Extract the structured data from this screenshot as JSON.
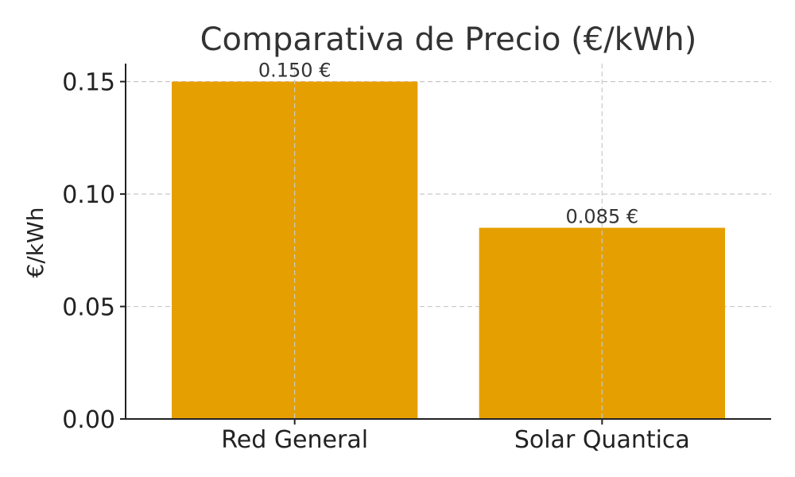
{
  "chart_data": {
    "type": "bar",
    "title": "Comparativa de Precio (€/kWh)",
    "xlabel": "",
    "ylabel": "€/kWh",
    "categories": [
      "Red General",
      "Solar Quantica"
    ],
    "values": [
      0.15,
      0.085
    ],
    "data_labels": [
      "0.150 €",
      "0.085 €"
    ],
    "ylim": [
      0,
      0.158
    ],
    "yticks": [
      0.0,
      0.05,
      0.1,
      0.15
    ],
    "ytick_labels": [
      "0.00",
      "0.05",
      "0.10",
      "0.15"
    ],
    "grid": true,
    "bar_color": "#E69F00"
  }
}
